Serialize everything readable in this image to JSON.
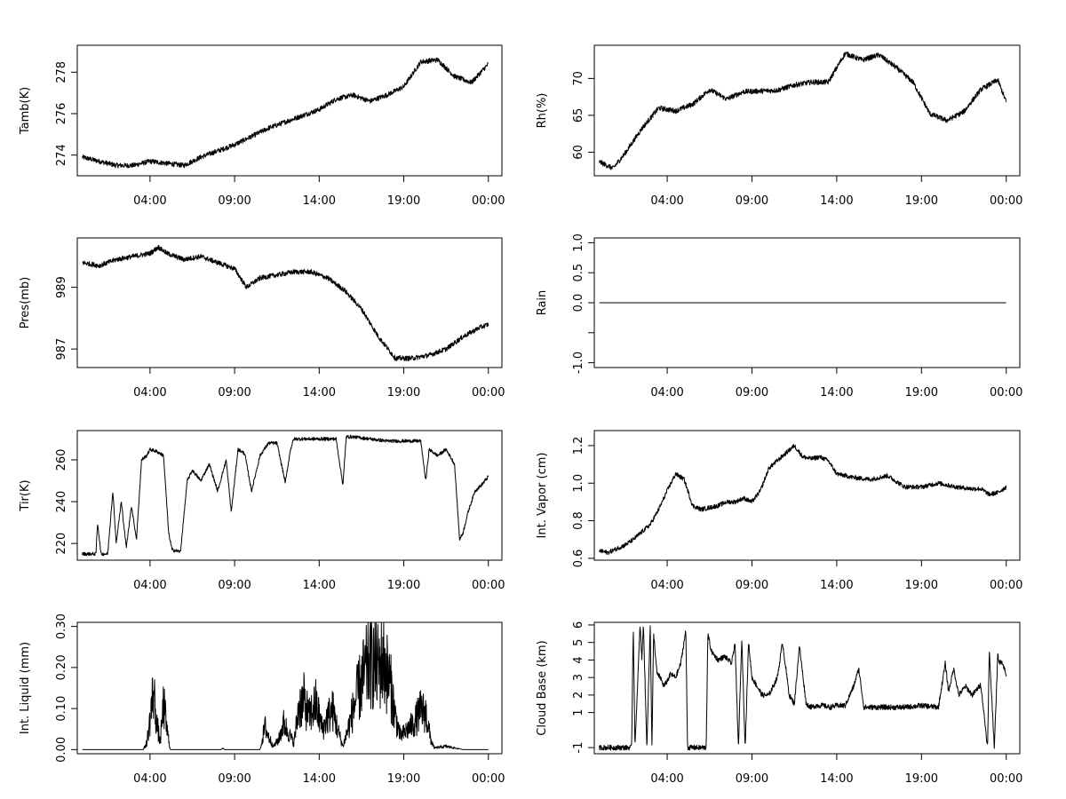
{
  "chart_data": [
    {
      "type": "line",
      "ylabel": "Tamb(K)",
      "x_tick_labels": [
        "04:00",
        "09:00",
        "14:00",
        "19:00",
        "00:00"
      ],
      "x_ticks": [
        4,
        9,
        14,
        19,
        24
      ],
      "xlim": [
        -0.3,
        24.8
      ],
      "ylim": [
        273.0,
        279.3
      ],
      "y_ticks": [
        274,
        276,
        278
      ],
      "y_tick_labels": [
        "274",
        "276",
        "278"
      ],
      "noise": 0.12,
      "series": [
        {
          "name": "Tamb",
          "x": [
            0,
            1,
            2,
            3,
            4,
            5,
            6,
            7,
            8,
            9,
            10,
            11,
            12,
            13,
            14,
            15,
            16,
            17,
            18,
            19,
            20,
            21,
            22,
            23,
            24
          ],
          "y": [
            273.9,
            273.7,
            273.5,
            273.5,
            273.7,
            273.6,
            273.5,
            273.9,
            274.2,
            274.5,
            274.9,
            275.3,
            275.6,
            275.9,
            276.2,
            276.7,
            276.9,
            276.6,
            276.9,
            277.3,
            278.5,
            278.6,
            277.8,
            277.5,
            278.4
          ]
        }
      ]
    },
    {
      "type": "line",
      "ylabel": "Rh(%)",
      "x_tick_labels": [
        "04:00",
        "09:00",
        "14:00",
        "19:00",
        "00:00"
      ],
      "x_ticks": [
        4,
        9,
        14,
        19,
        24
      ],
      "xlim": [
        -0.3,
        24.8
      ],
      "ylim": [
        56.8,
        74.5
      ],
      "y_ticks": [
        60,
        65,
        70
      ],
      "y_tick_labels": [
        "60",
        "65",
        "70"
      ],
      "noise": 0.35,
      "series": [
        {
          "name": "Rh",
          "x": [
            0,
            0.8,
            1.5,
            2.5,
            3.5,
            4.5,
            5.5,
            6.5,
            7.5,
            8.5,
            9.5,
            10.5,
            11.5,
            12.5,
            13.5,
            14.5,
            15.5,
            16.5,
            17.5,
            18.5,
            19.5,
            20.5,
            21.5,
            22.5,
            23.5,
            24
          ],
          "y": [
            58.7,
            57.8,
            59.8,
            63.2,
            66.0,
            65.6,
            66.5,
            68.5,
            67.2,
            68.2,
            68.3,
            68.4,
            69.1,
            69.5,
            69.5,
            73.4,
            72.5,
            73.2,
            71.5,
            69.5,
            65.2,
            64.3,
            65.5,
            68.5,
            69.8,
            66.8
          ]
        }
      ]
    },
    {
      "type": "line",
      "ylabel": "Pres(mb)",
      "x_tick_labels": [
        "04:00",
        "09:00",
        "14:00",
        "19:00",
        "00:00"
      ],
      "x_ticks": [
        4,
        9,
        14,
        19,
        24
      ],
      "xlim": [
        -0.3,
        24.8
      ],
      "ylim": [
        986.4,
        990.6
      ],
      "y_ticks": [
        987,
        989
      ],
      "y_tick_labels": [
        "987",
        "989"
      ],
      "noise": 0.08,
      "series": [
        {
          "name": "Pres",
          "x": [
            0,
            1,
            2,
            3,
            4,
            4.5,
            5,
            6,
            7,
            8,
            9,
            9.7,
            10.5,
            11.5,
            12.5,
            13.5,
            14.5,
            15.5,
            16.5,
            17.5,
            18.5,
            19.5,
            20.5,
            21.5,
            22.5,
            23.5,
            24
          ],
          "y": [
            989.8,
            989.7,
            989.9,
            990.0,
            990.1,
            990.3,
            990.1,
            989.9,
            990.0,
            989.8,
            989.6,
            989.0,
            989.3,
            989.4,
            989.5,
            989.5,
            989.3,
            988.9,
            988.3,
            987.4,
            986.7,
            986.7,
            986.8,
            987.0,
            987.4,
            987.7,
            987.8
          ]
        }
      ]
    },
    {
      "type": "line",
      "ylabel": "Rain",
      "x_tick_labels": [
        "04:00",
        "09:00",
        "14:00",
        "19:00",
        "00:00"
      ],
      "x_ticks": [
        4,
        9,
        14,
        19,
        24
      ],
      "xlim": [
        -0.3,
        24.8
      ],
      "ylim": [
        -1.08,
        1.08
      ],
      "y_ticks": [
        -1.0,
        -0.5,
        0.0,
        0.5,
        1.0
      ],
      "y_tick_labels": [
        "-1.0",
        "",
        "0.0",
        "0.5",
        "1.0"
      ],
      "noise": 0,
      "series": [
        {
          "name": "Rain",
          "x": [
            0,
            24
          ],
          "y": [
            0,
            0
          ]
        }
      ]
    },
    {
      "type": "line",
      "ylabel": "Tir(K)",
      "x_tick_labels": [
        "04:00",
        "09:00",
        "14:00",
        "19:00",
        "00:00"
      ],
      "x_ticks": [
        4,
        9,
        14,
        19,
        24
      ],
      "xlim": [
        -0.3,
        24.8
      ],
      "ylim": [
        212.0,
        274.0
      ],
      "y_ticks": [
        220,
        240,
        260
      ],
      "y_tick_labels": [
        "220",
        "240",
        "260"
      ],
      "noise": 0.8,
      "series": [
        {
          "name": "Tir",
          "x": [
            0,
            0.8,
            0.9,
            1.1,
            1.5,
            1.8,
            2.0,
            2.3,
            2.6,
            2.9,
            3.2,
            3.5,
            3.8,
            4.0,
            4.4,
            4.8,
            5.1,
            5.3,
            5.8,
            6.2,
            6.5,
            7.0,
            7.5,
            8.0,
            8.5,
            8.8,
            9.2,
            9.6,
            10.0,
            10.5,
            11.0,
            11.5,
            12.0,
            12.3,
            12.5,
            13.0,
            14.0,
            15.0,
            15.4,
            15.6,
            16.0,
            17.0,
            18.0,
            19.0,
            20.0,
            20.3,
            20.5,
            21.0,
            21.5,
            22.0,
            22.3,
            22.5,
            22.8,
            23.2,
            23.6,
            24.0
          ],
          "y": [
            215,
            215,
            230,
            215,
            215,
            245,
            220,
            240,
            218,
            238,
            222,
            260,
            262,
            265,
            264,
            262,
            225,
            217,
            216,
            250,
            255,
            250,
            258,
            245,
            260,
            235,
            265,
            263,
            245,
            262,
            268,
            268,
            249,
            265,
            270,
            270,
            270,
            270,
            248,
            271,
            271,
            270,
            269,
            269,
            269,
            250,
            265,
            262,
            265,
            258,
            222,
            225,
            235,
            245,
            248,
            252
          ]
        }
      ]
    },
    {
      "type": "line",
      "ylabel": "Int. Vapor (cm)",
      "x_tick_labels": [
        "04:00",
        "09:00",
        "14:00",
        "19:00",
        "00:00"
      ],
      "x_ticks": [
        4,
        9,
        14,
        19,
        24
      ],
      "xlim": [
        -0.3,
        24.8
      ],
      "ylim": [
        0.59,
        1.28
      ],
      "y_ticks": [
        0.6,
        0.8,
        1.0,
        1.2
      ],
      "y_tick_labels": [
        "0.6",
        "0.8",
        "1.0",
        "1.2"
      ],
      "noise": 0.012,
      "series": [
        {
          "name": "Int. Vapor",
          "x": [
            0,
            0.5,
            1.0,
            1.5,
            2.0,
            2.5,
            3.0,
            3.5,
            4.0,
            4.5,
            5.0,
            5.5,
            6.0,
            6.5,
            7.0,
            7.5,
            8.0,
            8.5,
            9.0,
            9.5,
            10.0,
            10.5,
            11.0,
            11.5,
            12.0,
            12.5,
            13.0,
            13.5,
            14.0,
            15.0,
            16.0,
            17.0,
            18.0,
            19.0,
            20.0,
            21.0,
            22.0,
            22.5,
            23.0,
            23.5,
            24.0
          ],
          "y": [
            0.64,
            0.63,
            0.65,
            0.67,
            0.7,
            0.74,
            0.78,
            0.86,
            0.96,
            1.05,
            1.02,
            0.88,
            0.86,
            0.87,
            0.88,
            0.9,
            0.9,
            0.92,
            0.9,
            0.96,
            1.08,
            1.12,
            1.16,
            1.2,
            1.14,
            1.13,
            1.14,
            1.12,
            1.05,
            1.03,
            1.02,
            1.04,
            0.98,
            0.98,
            1.0,
            0.98,
            0.97,
            0.97,
            0.94,
            0.95,
            0.98
          ]
        }
      ]
    },
    {
      "type": "line",
      "ylabel": "Int. Liquid (mm)",
      "x_tick_labels": [
        "04:00",
        "09:00",
        "14:00",
        "19:00",
        "00:00"
      ],
      "x_ticks": [
        4,
        9,
        14,
        19,
        24
      ],
      "xlim": [
        -0.3,
        24.8
      ],
      "ylim": [
        -0.01,
        0.31
      ],
      "y_ticks": [
        0.0,
        0.1,
        0.2,
        0.3
      ],
      "y_tick_labels": [
        "0.00",
        "0.10",
        "0.20",
        "0.30"
      ],
      "noise": 0,
      "spiky": true,
      "series": [
        {
          "name": "Int. Liquid",
          "x": [
            0,
            3.6,
            3.8,
            4.0,
            4.2,
            4.4,
            4.6,
            4.8,
            5.0,
            5.2,
            5.5,
            8.2,
            8.3,
            8.4,
            10.5,
            10.8,
            11.0,
            11.3,
            11.6,
            11.9,
            12.1,
            12.5,
            12.8,
            13.1,
            13.4,
            13.8,
            14.2,
            14.5,
            14.8,
            15.1,
            15.4,
            15.8,
            16.2,
            16.6,
            17.0,
            17.4,
            17.8,
            18.2,
            18.5,
            18.8,
            19.2,
            19.6,
            20.0,
            20.3,
            20.6,
            20.8,
            21.5,
            22.0,
            22.5,
            24.0
          ],
          "y": [
            0,
            0,
            0.02,
            0.09,
            0.18,
            0.08,
            0.02,
            0.14,
            0.06,
            0.0,
            0.0,
            0.0,
            0.004,
            0.0,
            0.0,
            0.07,
            0.04,
            0.01,
            0.03,
            0.08,
            0.06,
            0.02,
            0.13,
            0.15,
            0.1,
            0.14,
            0.06,
            0.1,
            0.12,
            0.06,
            0.01,
            0.08,
            0.16,
            0.22,
            0.27,
            0.25,
            0.27,
            0.2,
            0.1,
            0.04,
            0.06,
            0.08,
            0.12,
            0.11,
            0.03,
            0.005,
            0.01,
            0.005,
            0.0,
            0.0
          ]
        }
      ]
    },
    {
      "type": "line",
      "ylabel": "Cloud Base (km)",
      "x_tick_labels": [
        "04:00",
        "09:00",
        "14:00",
        "19:00",
        "00:00"
      ],
      "x_ticks": [
        4,
        9,
        14,
        19,
        24
      ],
      "xlim": [
        -0.3,
        24.8
      ],
      "ylim": [
        -1.35,
        6.15
      ],
      "y_ticks": [
        -1,
        1,
        2,
        3,
        4,
        5,
        6
      ],
      "y_tick_labels": [
        "-1",
        "1",
        "2",
        "3",
        "4",
        "5",
        "6"
      ],
      "noise": 0.15,
      "series": [
        {
          "name": "Cloud Base",
          "x": [
            0,
            1.9,
            2.0,
            2.1,
            2.4,
            2.5,
            2.6,
            2.8,
            3.0,
            3.1,
            3.2,
            3.4,
            3.6,
            3.8,
            4.0,
            4.2,
            4.5,
            4.8,
            5.1,
            5.2,
            5.3,
            6.3,
            6.4,
            6.6,
            7.0,
            7.4,
            7.8,
            8.0,
            8.2,
            8.4,
            8.6,
            8.8,
            9.0,
            9.3,
            9.6,
            10.0,
            10.5,
            10.8,
            11.2,
            11.5,
            11.8,
            12.2,
            12.5,
            12.8,
            13.2,
            13.6,
            14.0,
            14.5,
            15.0,
            15.3,
            15.6,
            16.0,
            17.0,
            18.0,
            19.0,
            20.0,
            20.4,
            20.6,
            20.9,
            21.2,
            21.6,
            22.0,
            22.5,
            22.9,
            23.0,
            23.3,
            23.5,
            23.6,
            23.7,
            23.9,
            24.0
          ],
          "y": [
            -1,
            -1,
            6,
            -1,
            6,
            4,
            6,
            -1,
            6,
            -1,
            5.5,
            3.2,
            3.0,
            2.5,
            2.8,
            3.2,
            3.0,
            3.8,
            5.7,
            -1,
            -1,
            -1,
            5.5,
            4.5,
            4.0,
            4.2,
            3.8,
            5.0,
            -1,
            5.2,
            -1,
            5.0,
            3.0,
            2.5,
            2.0,
            2.0,
            3.0,
            5.0,
            2.0,
            1.5,
            4.8,
            1.5,
            1.3,
            1.4,
            1.4,
            1.3,
            1.4,
            1.4,
            2.5,
            3.5,
            1.3,
            1.3,
            1.3,
            1.3,
            1.4,
            1.3,
            3.8,
            2.2,
            3.5,
            2.0,
            2.5,
            2.0,
            2.6,
            -1,
            4.5,
            -1,
            4.3,
            3.8,
            4.0,
            3.5,
            3.0
          ]
        }
      ]
    }
  ]
}
